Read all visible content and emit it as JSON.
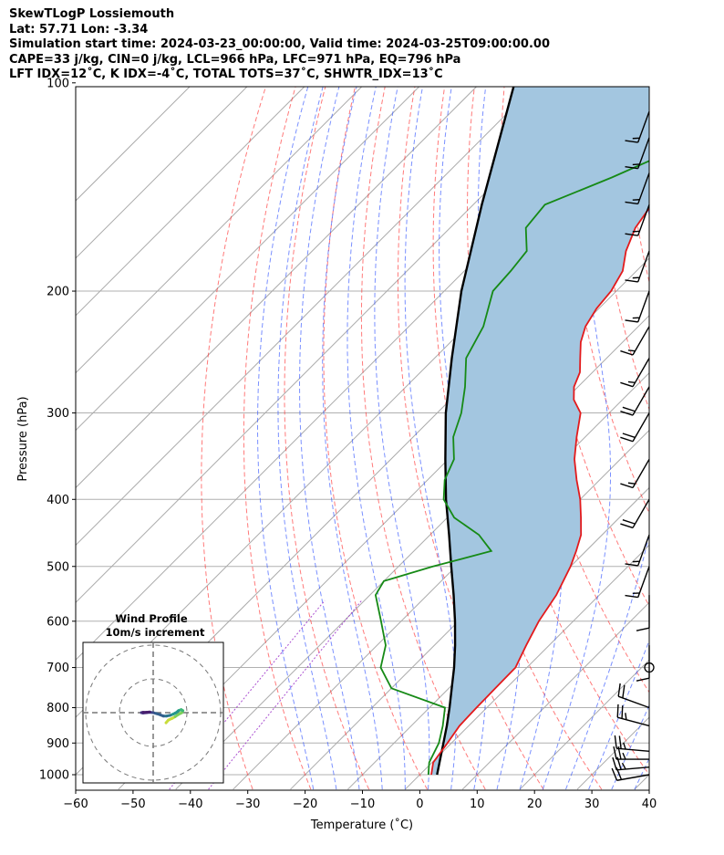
{
  "header": {
    "line1": "SkewTLogP Lossiemouth",
    "line2": "Lat: 57.71   Lon: -3.34",
    "line3": "Simulation start time: 2024-03-23_00:00:00, Valid time: 2024-03-25T09:00:00.00",
    "line4": "CAPE=33 j/kg, CIN=0 j/kg, LCL=966 hPa, LFC=971 hPa, EQ=796 hPa",
    "line5": "LFT IDX=12˚C, K IDX=-4˚C, TOTAL TOTS=37˚C, SHWTR_IDX=13˚C"
  },
  "colors": {
    "temperature": "#e31a1c",
    "dewpoint": "#168a16",
    "parcel": "#000000",
    "cape_fill": "#a3c6e0",
    "dry_adiabat": "#ff3333",
    "moist_adiabat": "#3355ff",
    "mixing_ratio": "#9b30c9",
    "isotherm": "#aaaaaa"
  },
  "chart_data": {
    "type": "skewt",
    "xlabel": "Temperature (˚C)",
    "ylabel": "Pressure (hPa)",
    "xlim": [
      -60,
      40
    ],
    "ylim": [
      1050,
      100
    ],
    "y_scale": "log",
    "xticks": [
      "−60",
      "−50",
      "−40",
      "−30",
      "−20",
      "−10",
      "0",
      "10",
      "20",
      "30",
      "40"
    ],
    "yticks": [
      "100",
      "200",
      "300",
      "400",
      "500",
      "600",
      "700",
      "800",
      "900",
      "1000"
    ],
    "grid": true,
    "temperature_profile": [
      [
        1000,
        2.0
      ],
      [
        960,
        0.2
      ],
      [
        900,
        -0.7
      ],
      [
        850,
        -1.6
      ],
      [
        800,
        -1.8
      ],
      [
        750,
        -1.9
      ],
      [
        700,
        -2.0
      ],
      [
        650,
        -4.0
      ],
      [
        600,
        -6.0
      ],
      [
        550,
        -7.5
      ],
      [
        500,
        -10.0
      ],
      [
        475,
        -11.7
      ],
      [
        450,
        -13.7
      ],
      [
        425,
        -16.7
      ],
      [
        400,
        -20.0
      ],
      [
        375,
        -24.0
      ],
      [
        350,
        -28.0
      ],
      [
        325,
        -31.5
      ],
      [
        300,
        -35.0
      ],
      [
        287,
        -38.5
      ],
      [
        275,
        -40.7
      ],
      [
        262,
        -42.2
      ],
      [
        250,
        -44.6
      ],
      [
        237,
        -47.3
      ],
      [
        225,
        -49.2
      ],
      [
        212,
        -50.4
      ],
      [
        200,
        -50.9
      ],
      [
        187,
        -52.4
      ],
      [
        175,
        -55.3
      ],
      [
        162,
        -57.7
      ],
      [
        150,
        -58.9
      ],
      [
        137,
        -58.2
      ],
      [
        125,
        -58.6
      ],
      [
        112,
        -59.0
      ],
      [
        100,
        -59.5
      ]
    ],
    "dewpoint_profile": [
      [
        1000,
        1.5
      ],
      [
        960,
        -0.5
      ],
      [
        900,
        -2.2
      ],
      [
        850,
        -4.5
      ],
      [
        800,
        -7.3
      ],
      [
        750,
        -20.0
      ],
      [
        700,
        -25.5
      ],
      [
        650,
        -28.5
      ],
      [
        600,
        -33.5
      ],
      [
        550,
        -39.0
      ],
      [
        525,
        -40.0
      ],
      [
        500,
        -34.0
      ],
      [
        475,
        -26.5
      ],
      [
        450,
        -31.5
      ],
      [
        425,
        -38.8
      ],
      [
        400,
        -43.8
      ],
      [
        375,
        -47.0
      ],
      [
        350,
        -49.0
      ],
      [
        325,
        -53.0
      ],
      [
        300,
        -55.8
      ],
      [
        275,
        -59.7
      ],
      [
        250,
        -64.5
      ],
      [
        225,
        -67.0
      ],
      [
        200,
        -71.5
      ],
      [
        187,
        -71.9
      ],
      [
        175,
        -72.6
      ],
      [
        162,
        -76.8
      ],
      [
        150,
        -77.5
      ],
      [
        137,
        -70.6
      ],
      [
        125,
        -64.5
      ],
      [
        112,
        -57.4
      ],
      [
        100,
        -50.5
      ]
    ],
    "parcel_profile": [
      [
        1000,
        3.0
      ],
      [
        960,
        1.3
      ],
      [
        900,
        -1.4
      ],
      [
        850,
        -3.8
      ],
      [
        800,
        -6.5
      ],
      [
        750,
        -9.5
      ],
      [
        700,
        -12.7
      ],
      [
        650,
        -16.4
      ],
      [
        600,
        -20.6
      ],
      [
        550,
        -25.4
      ],
      [
        500,
        -30.8
      ],
      [
        450,
        -36.7
      ],
      [
        400,
        -43.4
      ],
      [
        350,
        -50.5
      ],
      [
        300,
        -58.5
      ],
      [
        250,
        -67.0
      ],
      [
        200,
        -77.0
      ],
      [
        150,
        -88.5
      ],
      [
        100,
        -104.0
      ]
    ],
    "wind_barbs": [
      {
        "p": 1000,
        "speed_kt": 20,
        "dir": 260
      },
      {
        "p": 975,
        "speed_kt": 25,
        "dir": 265
      },
      {
        "p": 950,
        "speed_kt": 25,
        "dir": 270
      },
      {
        "p": 925,
        "speed_kt": 25,
        "dir": 275
      },
      {
        "p": 850,
        "speed_kt": 25,
        "dir": 285
      },
      {
        "p": 800,
        "speed_kt": 20,
        "dir": 290
      },
      {
        "p": 700,
        "speed_kt": 0,
        "dir": 0
      },
      {
        "p": 650,
        "speed_kt": 10,
        "dir": 180
      },
      {
        "p": 550,
        "speed_kt": 10,
        "dir": 180
      },
      {
        "p": 500,
        "speed_kt": 15,
        "dir": 200
      },
      {
        "p": 450,
        "speed_kt": 15,
        "dir": 200
      },
      {
        "p": 400,
        "speed_kt": 20,
        "dir": 210
      },
      {
        "p": 350,
        "speed_kt": 15,
        "dir": 210
      },
      {
        "p": 300,
        "speed_kt": 20,
        "dir": 210
      },
      {
        "p": 275,
        "speed_kt": 20,
        "dir": 210
      },
      {
        "p": 250,
        "speed_kt": 15,
        "dir": 210
      },
      {
        "p": 225,
        "speed_kt": 15,
        "dir": 210
      },
      {
        "p": 200,
        "speed_kt": 15,
        "dir": 200
      },
      {
        "p": 175,
        "speed_kt": 15,
        "dir": 200
      },
      {
        "p": 150,
        "speed_kt": 15,
        "dir": 200
      },
      {
        "p": 135,
        "speed_kt": 15,
        "dir": 200
      },
      {
        "p": 120,
        "speed_kt": 15,
        "dir": 200
      },
      {
        "p": 110,
        "speed_kt": 15,
        "dir": 200
      }
    ],
    "hodograph": {
      "title": "Wind Profile",
      "subtitle": "10m/s increment",
      "ring_step_ms": 10,
      "points_uv": [
        [
          3.8,
          -3.0
        ],
        [
          4.5,
          -2.2
        ],
        [
          5.6,
          -1.7
        ],
        [
          6.5,
          -1.2
        ],
        [
          7.5,
          -0.5
        ],
        [
          8.5,
          0.0
        ],
        [
          8.8,
          0.6
        ],
        [
          8.3,
          0.9
        ],
        [
          7.5,
          0.6
        ],
        [
          6.8,
          0.0
        ],
        [
          6.0,
          -0.4
        ],
        [
          5.0,
          -0.8
        ],
        [
          4.0,
          -1.0
        ],
        [
          3.0,
          -1.0
        ],
        [
          2.0,
          -0.6
        ],
        [
          1.0,
          -0.3
        ],
        [
          0.0,
          0.0
        ],
        [
          -1.0,
          0.1
        ],
        [
          -2.0,
          0.0
        ],
        [
          -3.0,
          -0.1
        ],
        [
          -3.5,
          0.0
        ],
        [
          -3.0,
          0.1
        ],
        [
          -2.0,
          0.1
        ],
        [
          -1.0,
          0.2
        ]
      ]
    }
  }
}
